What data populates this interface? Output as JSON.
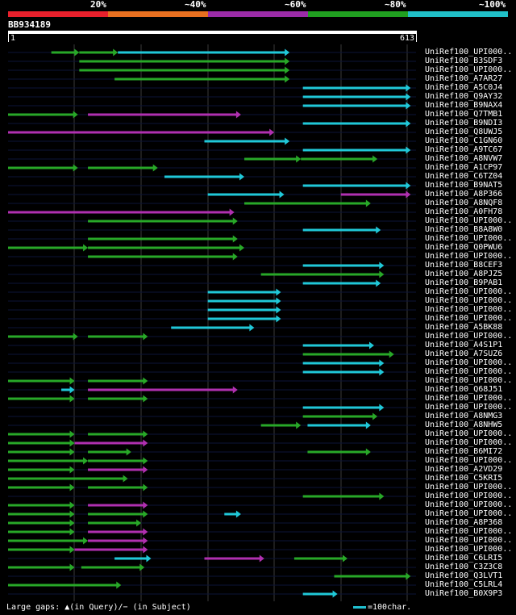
{
  "scale": {
    "labels": [
      "20%",
      "~40%",
      "~60%",
      "~80%",
      "~100%"
    ],
    "colors": [
      "#e8202c",
      "#e87020",
      "#9c2ca8",
      "#20a020",
      "#20c0c8"
    ]
  },
  "query": {
    "name": "BB934189",
    "start": "1",
    "end": "613",
    "length": 613
  },
  "colors": {
    "c": "#20c8d8",
    "g": "#28a828",
    "m": "#b030b0"
  },
  "legend": {
    "text": "Large gaps: ▲(in Query)/− (in Subject)",
    "scale_text": "=100char."
  },
  "hits": [
    {
      "label": "UniRef100_UPI000..",
      "segs": [
        [
          65,
          107,
          "g"
        ],
        [
          107,
          165,
          "g"
        ],
        [
          165,
          423,
          "c"
        ]
      ]
    },
    {
      "label": "UniRef100_B3SDF3",
      "segs": [
        [
          107,
          423,
          "g"
        ]
      ]
    },
    {
      "label": "UniRef100_UPI000..",
      "segs": [
        [
          107,
          423,
          "g"
        ]
      ]
    },
    {
      "label": "UniRef100_A7AR27",
      "segs": [
        [
          160,
          423,
          "g"
        ]
      ]
    },
    {
      "label": "UniRef100_A5C0J4",
      "segs": [
        [
          443,
          605,
          "c"
        ]
      ]
    },
    {
      "label": "UniRef100_Q9AY32",
      "segs": [
        [
          443,
          605,
          "c"
        ]
      ]
    },
    {
      "label": "UniRef100_B9NAX4",
      "segs": [
        [
          443,
          605,
          "c"
        ]
      ]
    },
    {
      "label": "UniRef100_Q7TMB1",
      "segs": [
        [
          0,
          105,
          "g"
        ],
        [
          120,
          350,
          "m"
        ]
      ]
    },
    {
      "label": "UniRef100_B9NDI3",
      "segs": [
        [
          443,
          605,
          "c"
        ]
      ]
    },
    {
      "label": "UniRef100_Q8UWJ5",
      "segs": [
        [
          0,
          400,
          "m"
        ]
      ]
    },
    {
      "label": "UniRef100_C1GN60",
      "segs": [
        [
          295,
          423,
          "c"
        ]
      ]
    },
    {
      "label": "UniRef100_A9TC67",
      "segs": [
        [
          443,
          605,
          "c"
        ]
      ]
    },
    {
      "label": "UniRef100_A8NVW7",
      "segs": [
        [
          355,
          440,
          "g"
        ],
        [
          440,
          555,
          "g"
        ]
      ]
    },
    {
      "label": "UniRef100_A1CP97",
      "segs": [
        [
          0,
          105,
          "g"
        ],
        [
          120,
          225,
          "g"
        ]
      ]
    },
    {
      "label": "UniRef100_C6TZ04",
      "segs": [
        [
          235,
          355,
          "c"
        ]
      ]
    },
    {
      "label": "UniRef100_B9NAT5",
      "segs": [
        [
          443,
          605,
          "c"
        ]
      ]
    },
    {
      "label": "UniRef100_A8P366",
      "segs": [
        [
          300,
          415,
          "c"
        ],
        [
          500,
          605,
          "m"
        ]
      ]
    },
    {
      "label": "UniRef100_A8NQF8",
      "segs": [
        [
          355,
          545,
          "g"
        ]
      ]
    },
    {
      "label": "UniRef100_A0FH78",
      "segs": [
        [
          0,
          340,
          "m"
        ]
      ]
    },
    {
      "label": "UniRef100_UPI000..",
      "segs": [
        [
          120,
          345,
          "g"
        ]
      ]
    },
    {
      "label": "UniRef100_B8A8W0",
      "segs": [
        [
          443,
          560,
          "c"
        ]
      ]
    },
    {
      "label": "UniRef100_UPI000..",
      "segs": [
        [
          120,
          345,
          "g"
        ]
      ]
    },
    {
      "label": "UniRef100_Q0PWU6",
      "segs": [
        [
          0,
          120,
          "g"
        ],
        [
          120,
          355,
          "g"
        ]
      ]
    },
    {
      "label": "UniRef100_UPI000..",
      "segs": [
        [
          120,
          345,
          "g"
        ]
      ]
    },
    {
      "label": "UniRef100_B8CEF3",
      "segs": [
        [
          443,
          565,
          "c"
        ]
      ]
    },
    {
      "label": "UniRef100_A8PJZ5",
      "segs": [
        [
          380,
          565,
          "g"
        ]
      ]
    },
    {
      "label": "UniRef100_B9PAB1",
      "segs": [
        [
          443,
          560,
          "c"
        ]
      ]
    },
    {
      "label": "UniRef100_UPI000..",
      "segs": [
        [
          300,
          410,
          "c"
        ]
      ]
    },
    {
      "label": "UniRef100_UPI000..",
      "segs": [
        [
          300,
          410,
          "c"
        ]
      ]
    },
    {
      "label": "UniRef100_UPI000..",
      "segs": [
        [
          300,
          410,
          "c"
        ]
      ]
    },
    {
      "label": "UniRef100_UPI000..",
      "segs": [
        [
          300,
          410,
          "c"
        ]
      ]
    },
    {
      "label": "UniRef100_A5BK88",
      "segs": [
        [
          245,
          370,
          "c"
        ]
      ]
    },
    {
      "label": "UniRef100_UPI000..",
      "segs": [
        [
          0,
          105,
          "g"
        ],
        [
          120,
          210,
          "g"
        ]
      ]
    },
    {
      "label": "UniRef100_A4S1P1",
      "segs": [
        [
          443,
          550,
          "c"
        ]
      ]
    },
    {
      "label": "UniRef100_A7SUZ6",
      "segs": [
        [
          443,
          580,
          "g"
        ]
      ]
    },
    {
      "label": "UniRef100_UPI000..",
      "segs": [
        [
          443,
          565,
          "c"
        ]
      ]
    },
    {
      "label": "UniRef100_UPI000..",
      "segs": [
        [
          443,
          565,
          "c"
        ]
      ]
    },
    {
      "label": "UniRef100_UPI000..",
      "segs": [
        [
          0,
          100,
          "g"
        ],
        [
          120,
          210,
          "g"
        ]
      ]
    },
    {
      "label": "UniRef100_Q68J51",
      "segs": [
        [
          80,
          100,
          "c"
        ],
        [
          120,
          345,
          "m"
        ]
      ]
    },
    {
      "label": "UniRef100_UPI000..",
      "segs": [
        [
          0,
          100,
          "g"
        ],
        [
          120,
          210,
          "g"
        ]
      ]
    },
    {
      "label": "UniRef100_UPI000..",
      "segs": [
        [
          443,
          565,
          "c"
        ]
      ]
    },
    {
      "label": "UniRef100_A8NMG3",
      "segs": [
        [
          443,
          555,
          "g"
        ]
      ]
    },
    {
      "label": "UniRef100_A8NHW5",
      "segs": [
        [
          380,
          440,
          "g"
        ],
        [
          450,
          545,
          "c"
        ]
      ]
    },
    {
      "label": "UniRef100_UPI000..",
      "segs": [
        [
          0,
          100,
          "g"
        ],
        [
          120,
          210,
          "g"
        ]
      ]
    },
    {
      "label": "UniRef100_UPI000..",
      "segs": [
        [
          0,
          100,
          "g"
        ],
        [
          100,
          210,
          "m"
        ]
      ]
    },
    {
      "label": "UniRef100_B6MI72",
      "segs": [
        [
          0,
          100,
          "g"
        ],
        [
          120,
          185,
          "g"
        ],
        [
          450,
          545,
          "g"
        ]
      ]
    },
    {
      "label": "UniRef100_UPI000..",
      "segs": [
        [
          0,
          120,
          "g"
        ],
        [
          120,
          210,
          "g"
        ]
      ]
    },
    {
      "label": "UniRef100_A2VD29",
      "segs": [
        [
          0,
          100,
          "g"
        ],
        [
          120,
          210,
          "m"
        ]
      ]
    },
    {
      "label": "UniRef100_C5KRI5",
      "segs": [
        [
          0,
          180,
          "g"
        ]
      ]
    },
    {
      "label": "UniRef100_UPI000..",
      "segs": [
        [
          0,
          100,
          "g"
        ],
        [
          120,
          210,
          "g"
        ]
      ]
    },
    {
      "label": "UniRef100_UPI000..",
      "segs": [
        [
          443,
          565,
          "g"
        ]
      ]
    },
    {
      "label": "UniRef100_UPI000..",
      "segs": [
        [
          0,
          100,
          "g"
        ],
        [
          120,
          210,
          "m"
        ]
      ]
    },
    {
      "label": "UniRef100_UPI000..",
      "segs": [
        [
          0,
          100,
          "g"
        ],
        [
          120,
          210,
          "g"
        ],
        [
          325,
          350,
          "c"
        ]
      ]
    },
    {
      "label": "UniRef100_A8P368",
      "segs": [
        [
          0,
          100,
          "g"
        ],
        [
          120,
          200,
          "g"
        ]
      ]
    },
    {
      "label": "UniRef100_UPI000..",
      "segs": [
        [
          0,
          100,
          "g"
        ],
        [
          120,
          210,
          "m"
        ]
      ]
    },
    {
      "label": "UniRef100_UPI000..",
      "segs": [
        [
          0,
          120,
          "g"
        ],
        [
          120,
          210,
          "m"
        ]
      ]
    },
    {
      "label": "UniRef100_UPI000..",
      "segs": [
        [
          0,
          100,
          "g"
        ],
        [
          100,
          210,
          "m"
        ]
      ]
    },
    {
      "label": "UniRef100_C6LRI5",
      "segs": [
        [
          160,
          215,
          "c"
        ],
        [
          295,
          385,
          "m"
        ],
        [
          430,
          510,
          "g"
        ]
      ]
    },
    {
      "label": "UniRef100_C3Z3C8",
      "segs": [
        [
          0,
          100,
          "g"
        ],
        [
          110,
          205,
          "g"
        ]
      ]
    },
    {
      "label": "UniRef100_Q3LVT1",
      "segs": [
        [
          490,
          605,
          "g"
        ]
      ]
    },
    {
      "label": "UniRef100_C5LRL4",
      "segs": [
        [
          0,
          170,
          "g"
        ]
      ]
    },
    {
      "label": "UniRef100_B0X9P3",
      "segs": [
        [
          443,
          495,
          "c"
        ]
      ]
    }
  ]
}
